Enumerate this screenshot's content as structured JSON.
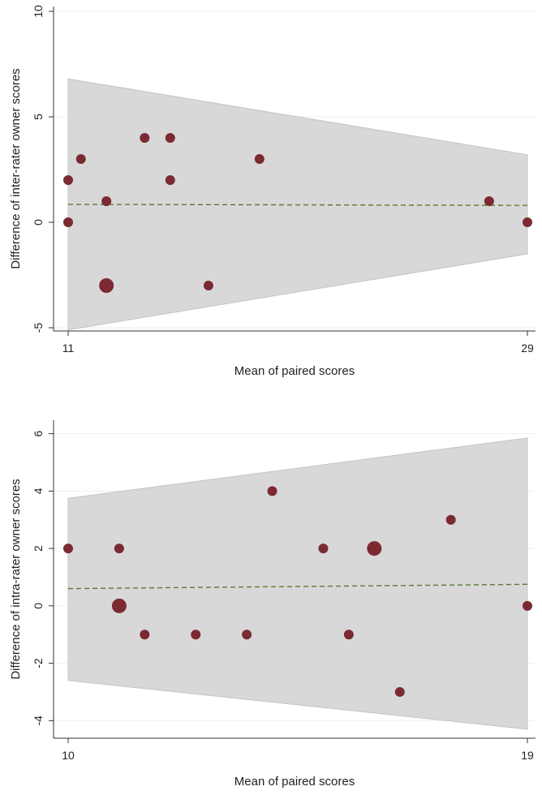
{
  "chart_data": [
    {
      "type": "scatter",
      "title": "",
      "xlabel": "Mean of paired scores",
      "ylabel": "Difference of inter-rater owner scores",
      "xlim": [
        11,
        29
      ],
      "ylim": [
        -5,
        10
      ],
      "x_ticks": [
        "11",
        "29"
      ],
      "y_ticks": [
        "-5",
        "0",
        "5",
        "10"
      ],
      "grid": true,
      "points": [
        {
          "x": 11,
          "y": 2,
          "size": 1
        },
        {
          "x": 11,
          "y": 0,
          "size": 1
        },
        {
          "x": 11.5,
          "y": 3,
          "size": 1
        },
        {
          "x": 12.5,
          "y": 1,
          "size": 1
        },
        {
          "x": 12.5,
          "y": -3,
          "size": 2
        },
        {
          "x": 14,
          "y": 4,
          "size": 1
        },
        {
          "x": 15,
          "y": 4,
          "size": 1
        },
        {
          "x": 15,
          "y": 2,
          "size": 1
        },
        {
          "x": 16.5,
          "y": -3,
          "size": 1
        },
        {
          "x": 18.5,
          "y": 3,
          "size": 1
        },
        {
          "x": 27.5,
          "y": 1,
          "size": 1
        },
        {
          "x": 29,
          "y": 0,
          "size": 1
        }
      ],
      "mean_line": {
        "y_start": 0.85,
        "y_end": 0.8
      },
      "limits_band": {
        "upper": [
          6.8,
          3.2
        ],
        "lower": [
          -5.1,
          -1.5
        ]
      },
      "colors": {
        "point": "#7a2a30",
        "band": "#d8d8d8",
        "mean_line": "#5a7a30"
      }
    },
    {
      "type": "scatter",
      "title": "",
      "xlabel": "Mean of paired scores",
      "ylabel": "Difference of intra-rater owner scores",
      "xlim": [
        10,
        19
      ],
      "ylim": [
        -4.5,
        6.3
      ],
      "x_ticks": [
        "10",
        "19"
      ],
      "y_ticks": [
        "-4",
        "-2",
        "0",
        "2",
        "4",
        "6"
      ],
      "grid": true,
      "points": [
        {
          "x": 10,
          "y": 2,
          "size": 1
        },
        {
          "x": 11,
          "y": 2,
          "size": 1
        },
        {
          "x": 11,
          "y": 0,
          "size": 2
        },
        {
          "x": 11.5,
          "y": -1,
          "size": 1
        },
        {
          "x": 12.5,
          "y": -1,
          "size": 1
        },
        {
          "x": 13.5,
          "y": -1,
          "size": 1
        },
        {
          "x": 14,
          "y": 4,
          "size": 1
        },
        {
          "x": 15,
          "y": 2,
          "size": 1
        },
        {
          "x": 15.5,
          "y": -1,
          "size": 1
        },
        {
          "x": 16,
          "y": 2,
          "size": 2
        },
        {
          "x": 16.5,
          "y": -3,
          "size": 1
        },
        {
          "x": 17.5,
          "y": 3,
          "size": 1
        },
        {
          "x": 19,
          "y": 0,
          "size": 1
        }
      ],
      "mean_line": {
        "y_start": 0.6,
        "y_end": 0.75
      },
      "limits_band": {
        "upper": [
          3.75,
          5.85
        ],
        "lower": [
          -2.6,
          -4.3
        ]
      },
      "colors": {
        "point": "#7a2a30",
        "band": "#d8d8d8",
        "mean_line": "#5a7a30"
      }
    }
  ]
}
